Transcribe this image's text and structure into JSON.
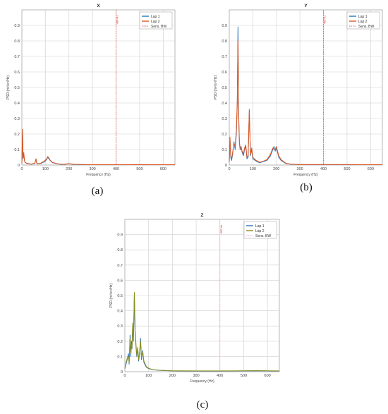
{
  "colors": {
    "lap1": "#2a74b5",
    "lap2_xy": "#e2561e",
    "lap2_z": "#8a8f1c",
    "bw": "#e0392b",
    "bw_z": "#e58ad0",
    "grid": "#cfcfcf"
  },
  "chart_data": [
    {
      "panel": "a",
      "caption": "(a)",
      "type": "line",
      "title": "X",
      "xlabel": "Frequency (Hz)",
      "ylabel": "PSD (m²/s⁴/Hz)",
      "xlim": [
        0,
        650
      ],
      "ylim": [
        0,
        1
      ],
      "xticks": [
        "0",
        "100",
        "200",
        "300",
        "400",
        "500",
        "600"
      ],
      "yticks": [
        "0",
        "0.1",
        "0.2",
        "0.3",
        "0.4",
        "0.5",
        "0.6",
        "0.7",
        "0.8",
        "0.9"
      ],
      "grid": true,
      "legend_position": "top-right",
      "legend": [
        "Lap 1",
        "Lap 2",
        "Sens. BW"
      ],
      "bw_line": {
        "x": 400,
        "label": "400 Hz"
      },
      "series": [
        {
          "name": "Lap 1",
          "x": [
            0,
            3,
            5,
            8,
            12,
            20,
            40,
            55,
            60,
            63,
            68,
            80,
            95,
            105,
            110,
            115,
            120,
            130,
            145,
            160,
            180,
            200,
            220,
            260,
            300,
            350,
            400,
            450,
            500,
            550,
            600,
            650
          ],
          "y": [
            0.01,
            0.22,
            0.04,
            0.07,
            0.02,
            0.01,
            0.005,
            0.01,
            0.04,
            0.01,
            0.008,
            0.01,
            0.02,
            0.035,
            0.05,
            0.04,
            0.03,
            0.015,
            0.01,
            0.005,
            0.004,
            0.008,
            0.004,
            0.003,
            0.002,
            0.002,
            0.002,
            0.002,
            0.003,
            0.002,
            0.002,
            0.002
          ]
        },
        {
          "name": "Lap 2",
          "x": [
            0,
            3,
            5,
            8,
            12,
            20,
            40,
            55,
            60,
            63,
            68,
            80,
            95,
            105,
            110,
            115,
            120,
            130,
            145,
            160,
            180,
            200,
            220,
            260,
            300,
            350,
            400,
            450,
            500,
            550,
            600,
            650
          ],
          "y": [
            0.01,
            0.23,
            0.05,
            0.08,
            0.02,
            0.012,
            0.006,
            0.012,
            0.04,
            0.012,
            0.009,
            0.012,
            0.025,
            0.04,
            0.055,
            0.045,
            0.032,
            0.017,
            0.011,
            0.006,
            0.005,
            0.009,
            0.005,
            0.003,
            0.002,
            0.002,
            0.002,
            0.002,
            0.003,
            0.002,
            0.002,
            0.002
          ]
        }
      ]
    },
    {
      "panel": "b",
      "caption": "(b)",
      "type": "line",
      "title": "Y",
      "xlabel": "Frequency (Hz)",
      "ylabel": "PSD (m²/s⁴/Hz)",
      "xlim": [
        0,
        650
      ],
      "ylim": [
        0,
        1
      ],
      "xticks": [
        "0",
        "100",
        "200",
        "300",
        "400",
        "500",
        "600"
      ],
      "yticks": [
        "0",
        "0.1",
        "0.2",
        "0.3",
        "0.4",
        "0.5",
        "0.6",
        "0.7",
        "0.8",
        "0.9"
      ],
      "grid": true,
      "legend_position": "top-right",
      "legend": [
        "Lap 1",
        "Lap 2",
        "Sens. BW"
      ],
      "bw_line": {
        "x": 400,
        "label": "400 Hz"
      },
      "series": [
        {
          "name": "Lap 1",
          "x": [
            0,
            3,
            6,
            10,
            15,
            20,
            25,
            30,
            34,
            37,
            40,
            43,
            46,
            50,
            55,
            60,
            65,
            70,
            75,
            80,
            85,
            90,
            95,
            100,
            110,
            120,
            130,
            140,
            160,
            175,
            185,
            190,
            195,
            200,
            205,
            210,
            220,
            240,
            260,
            280,
            300,
            350,
            400,
            450,
            500,
            550,
            600,
            650
          ],
          "y": [
            0.02,
            0.17,
            0.05,
            0.03,
            0.08,
            0.15,
            0.1,
            0.2,
            0.4,
            0.89,
            0.3,
            0.14,
            0.1,
            0.12,
            0.08,
            0.06,
            0.1,
            0.12,
            0.04,
            0.05,
            0.35,
            0.06,
            0.1,
            0.04,
            0.03,
            0.02,
            0.015,
            0.02,
            0.03,
            0.06,
            0.1,
            0.12,
            0.09,
            0.11,
            0.08,
            0.05,
            0.03,
            0.01,
            0.005,
            0.004,
            0.003,
            0.003,
            0.003,
            0.003,
            0.003,
            0.002,
            0.002,
            0.002
          ]
        },
        {
          "name": "Lap 2",
          "x": [
            0,
            3,
            6,
            10,
            15,
            20,
            25,
            30,
            34,
            37,
            40,
            43,
            46,
            50,
            55,
            60,
            65,
            70,
            75,
            80,
            85,
            90,
            95,
            100,
            110,
            120,
            130,
            140,
            160,
            175,
            185,
            190,
            195,
            200,
            205,
            210,
            220,
            240,
            260,
            280,
            300,
            350,
            400,
            450,
            500,
            550,
            600,
            650
          ],
          "y": [
            0.02,
            0.18,
            0.06,
            0.04,
            0.09,
            0.14,
            0.12,
            0.22,
            0.42,
            0.8,
            0.32,
            0.15,
            0.11,
            0.1,
            0.09,
            0.07,
            0.11,
            0.13,
            0.05,
            0.06,
            0.36,
            0.07,
            0.11,
            0.05,
            0.035,
            0.025,
            0.018,
            0.022,
            0.035,
            0.07,
            0.11,
            0.1,
            0.1,
            0.12,
            0.09,
            0.06,
            0.035,
            0.012,
            0.006,
            0.004,
            0.003,
            0.003,
            0.003,
            0.003,
            0.003,
            0.002,
            0.002,
            0.002
          ]
        }
      ]
    },
    {
      "panel": "c",
      "caption": "(c)",
      "type": "line",
      "title": "Z",
      "xlabel": "Frequency (Hz)",
      "ylabel": "PSD (m²/s⁴/Hz)",
      "xlim": [
        0,
        650
      ],
      "ylim": [
        0,
        1
      ],
      "xticks": [
        "0",
        "100",
        "200",
        "300",
        "400",
        "500",
        "600"
      ],
      "yticks": [
        "0",
        "0.1",
        "0.2",
        "0.3",
        "0.4",
        "0.5",
        "0.6",
        "0.7",
        "0.8",
        "0.9"
      ],
      "grid": true,
      "legend_position": "top-right",
      "legend": [
        "Lap 1",
        "Lap 2",
        "Sens. BW"
      ],
      "bw_line": {
        "x": 400,
        "label": "400 Hz"
      },
      "series": [
        {
          "name": "Lap 1",
          "x": [
            0,
            5,
            10,
            15,
            18,
            22,
            25,
            28,
            30,
            33,
            36,
            40,
            43,
            46,
            50,
            54,
            58,
            62,
            66,
            70,
            75,
            80,
            90,
            100,
            120,
            150,
            200,
            300,
            400,
            500,
            550,
            600,
            650
          ],
          "y": [
            0.02,
            0.05,
            0.08,
            0.12,
            0.05,
            0.24,
            0.1,
            0.2,
            0.15,
            0.3,
            0.2,
            0.51,
            0.25,
            0.18,
            0.1,
            0.15,
            0.07,
            0.12,
            0.22,
            0.08,
            0.14,
            0.06,
            0.03,
            0.02,
            0.012,
            0.008,
            0.005,
            0.004,
            0.004,
            0.005,
            0.006,
            0.005,
            0.004
          ]
        },
        {
          "name": "Lap 2",
          "x": [
            0,
            5,
            10,
            15,
            18,
            22,
            25,
            28,
            30,
            33,
            36,
            40,
            43,
            46,
            50,
            54,
            58,
            62,
            66,
            70,
            75,
            80,
            90,
            100,
            120,
            150,
            200,
            300,
            400,
            500,
            550,
            600,
            650
          ],
          "y": [
            0.02,
            0.06,
            0.09,
            0.1,
            0.06,
            0.22,
            0.12,
            0.18,
            0.16,
            0.32,
            0.22,
            0.52,
            0.27,
            0.2,
            0.11,
            0.16,
            0.08,
            0.13,
            0.2,
            0.09,
            0.13,
            0.07,
            0.035,
            0.022,
            0.013,
            0.009,
            0.006,
            0.005,
            0.005,
            0.006,
            0.007,
            0.006,
            0.005
          ]
        }
      ]
    }
  ]
}
